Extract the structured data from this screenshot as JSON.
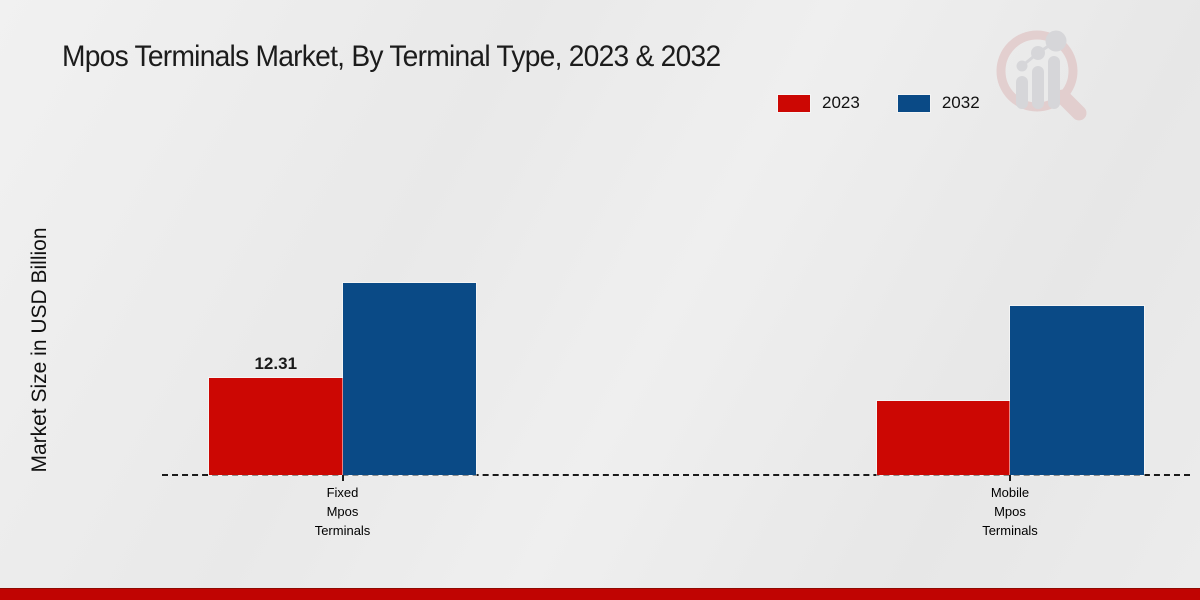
{
  "title": "Mpos Terminals Market, By Terminal Type, 2023 & 2032",
  "ylabel": "Market Size in USD Billion",
  "legend": {
    "items": [
      {
        "label": "2023",
        "color": "#cc0703"
      },
      {
        "label": "2032",
        "color": "#0a4a86"
      }
    ]
  },
  "footer": {
    "band_color": "#c00402"
  },
  "watermark": {
    "icon": "magnifier-bar-chart-logo",
    "circle_color": "#ddb9b9",
    "bars_color": "#c7c7cc"
  },
  "chart_data": {
    "type": "bar",
    "title": "Mpos Terminals Market, By Terminal Type, 2023 & 2032",
    "xlabel": "",
    "ylabel": "Market Size in USD Billion",
    "categories": [
      [
        "Fixed",
        "Mpos",
        "Terminals"
      ],
      [
        "Mobile",
        "Mpos",
        "Terminals"
      ]
    ],
    "series": [
      {
        "name": "2023",
        "color": "#cc0703",
        "values": [
          12.31,
          9.4
        ]
      },
      {
        "name": "2032",
        "color": "#0a4a86",
        "values": [
          24.4,
          21.5
        ]
      }
    ],
    "bar_labels": [
      [
        "12.31",
        ""
      ],
      [
        "",
        ""
      ]
    ],
    "ylim": [
      0,
      30
    ],
    "grid": false,
    "legend_position": "top-right",
    "baseline_style": "dashed"
  }
}
